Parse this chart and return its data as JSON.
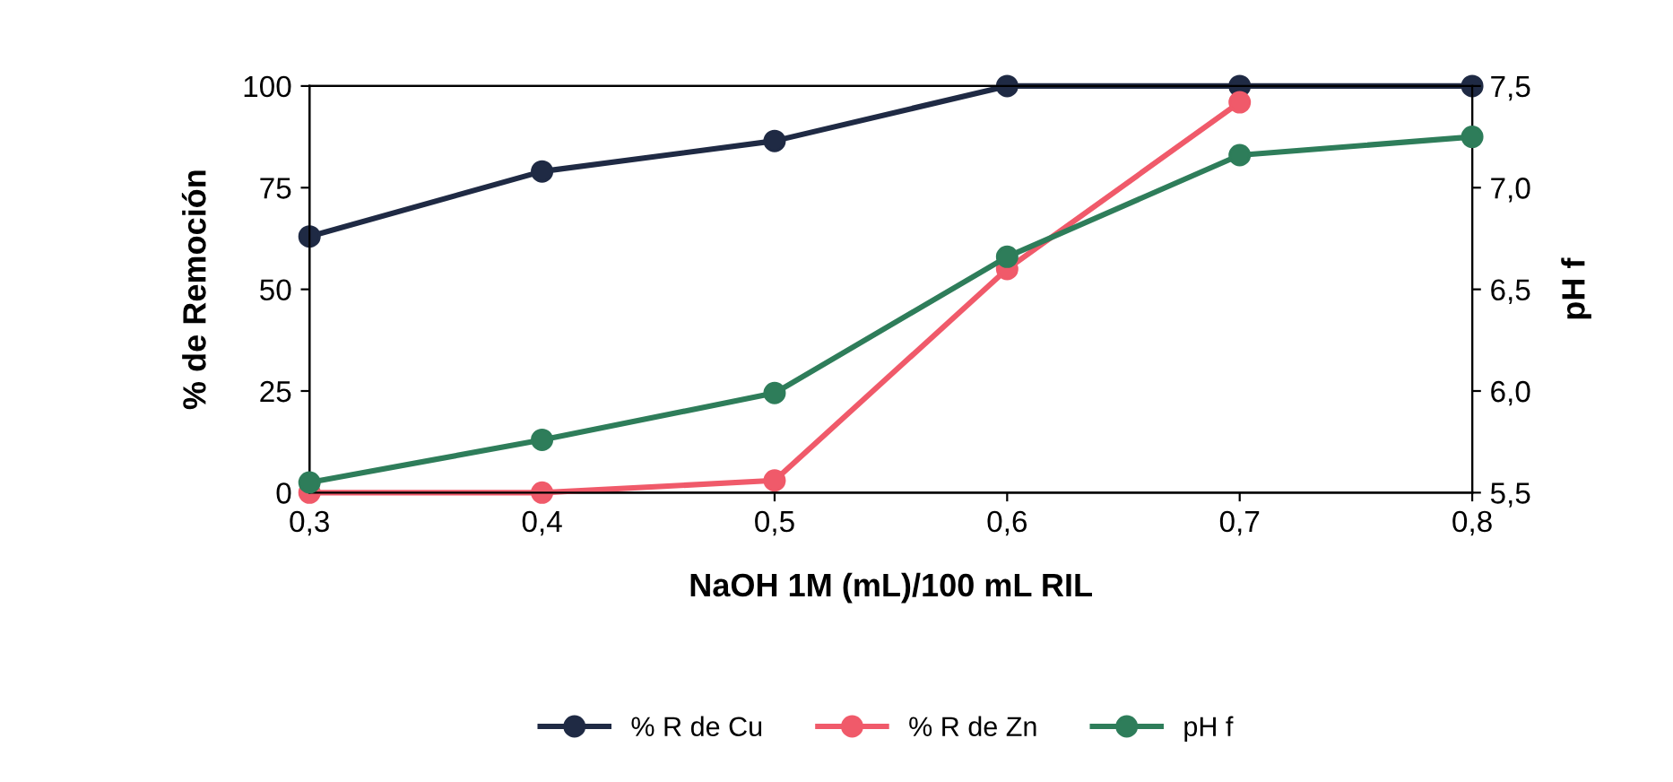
{
  "chart_data": {
    "type": "line",
    "x": [
      0.3,
      0.4,
      0.5,
      0.6,
      0.7,
      0.8
    ],
    "xlabel": "NaOH 1M (mL)/100 mL RIL",
    "ylabel": "% de Remoción",
    "y2label": "pH f",
    "xlim": [
      0.3,
      0.8
    ],
    "xticks": [
      {
        "value": 0.3,
        "label": "0,3"
      },
      {
        "value": 0.4,
        "label": "0,4"
      },
      {
        "value": 0.5,
        "label": "0,5"
      },
      {
        "value": 0.6,
        "label": "0,6"
      },
      {
        "value": 0.7,
        "label": "0,7"
      },
      {
        "value": 0.8,
        "label": "0,8"
      }
    ],
    "ylim": [
      0,
      100
    ],
    "yticks": [
      0,
      25,
      50,
      75,
      100
    ],
    "y2lim": [
      5.5,
      7.5
    ],
    "y2ticks": [
      {
        "value": 5.5,
        "label": "5,5"
      },
      {
        "value": 6.0,
        "label": "6,0"
      },
      {
        "value": 6.5,
        "label": "6,5"
      },
      {
        "value": 7.0,
        "label": "7,0"
      },
      {
        "value": 7.5,
        "label": "7,5"
      }
    ],
    "series": [
      {
        "name": "% R de Cu",
        "color": "#1f2a44",
        "values": [
          63,
          79,
          86.5,
          100,
          100,
          100
        ]
      },
      {
        "name": "% R de Zn",
        "color": "#f05a6a",
        "values": [
          0,
          0,
          3,
          55,
          96,
          null
        ]
      },
      {
        "name": "pH f",
        "color": "#2e7d5a",
        "axis": "y2",
        "values": [
          5.55,
          5.76,
          5.99,
          6.66,
          7.16,
          7.25
        ]
      }
    ],
    "marker": "circle",
    "line_style": "solid",
    "legend": "bottom",
    "grid": false
  }
}
